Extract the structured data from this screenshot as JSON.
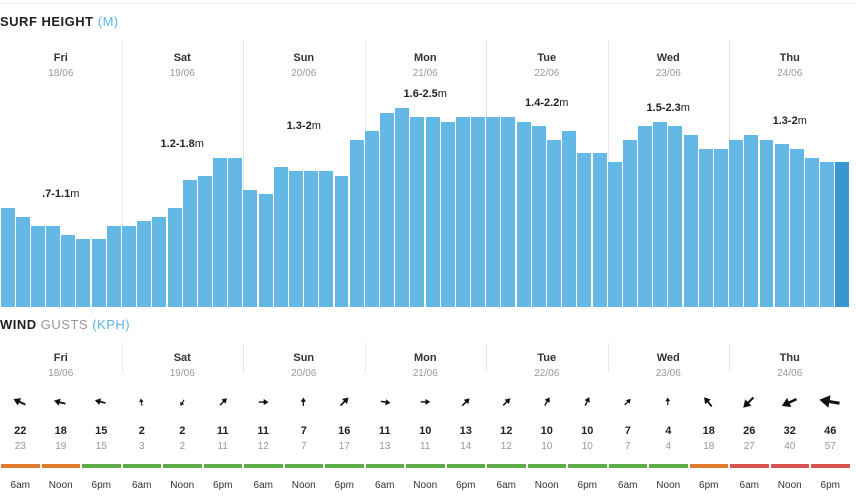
{
  "surf": {
    "title": "SURF HEIGHT",
    "unit": "(M)",
    "days": [
      {
        "name": "Fri",
        "date": "18/06",
        "range": ".7-1.1",
        "unit": "m"
      },
      {
        "name": "Sat",
        "date": "19/06",
        "range": "1.2-1.8",
        "unit": "m"
      },
      {
        "name": "Sun",
        "date": "20/06",
        "range": "1.3-2",
        "unit": "m"
      },
      {
        "name": "Mon",
        "date": "21/06",
        "range": "1.6-2.5",
        "unit": "m"
      },
      {
        "name": "Tue",
        "date": "22/06",
        "range": "1.4-2.2",
        "unit": "m"
      },
      {
        "name": "Wed",
        "date": "23/06",
        "range": "1.5-2.3",
        "unit": "m"
      },
      {
        "name": "Thu",
        "date": "24/06",
        "range": "1.3-2",
        "unit": "m"
      }
    ],
    "heights": [
      1.1,
      1.0,
      0.9,
      0.9,
      0.8,
      0.75,
      0.75,
      0.9,
      0.9,
      0.95,
      1.0,
      1.1,
      1.4,
      1.45,
      1.65,
      1.65,
      1.3,
      1.25,
      1.55,
      1.5,
      1.5,
      1.5,
      1.45,
      1.85,
      1.95,
      2.15,
      2.2,
      2.1,
      2.1,
      2.05,
      2.1,
      2.1,
      2.1,
      2.1,
      2.05,
      2.0,
      1.85,
      1.95,
      1.7,
      1.7,
      1.6,
      1.85,
      2.0,
      2.05,
      2.0,
      1.9,
      1.75,
      1.75,
      1.85,
      1.9,
      1.85,
      1.8,
      1.75,
      1.65,
      1.6,
      1.6
    ],
    "selected_index": 55,
    "ymax": 2.6
  },
  "wind": {
    "title": "WIND",
    "subtitle": "GUSTS",
    "unit": "(KPH)",
    "days": [
      {
        "name": "Fri",
        "date": "18/06",
        "slots": [
          {
            "time": "6am",
            "speed": "22",
            "gust": "23",
            "dir": -155,
            "rating": "#e07a2d"
          },
          {
            "time": "Noon",
            "speed": "18",
            "gust": "19",
            "dir": -165,
            "rating": "#e07a2d"
          },
          {
            "time": "6pm",
            "speed": "15",
            "gust": "15",
            "dir": -165,
            "rating": "#5cad4a"
          }
        ]
      },
      {
        "name": "Sat",
        "date": "19/06",
        "slots": [
          {
            "time": "6am",
            "speed": "2",
            "gust": "3",
            "dir": -100,
            "rating": "#5cad4a"
          },
          {
            "time": "Noon",
            "speed": "2",
            "gust": "2",
            "dir": 120,
            "rating": "#5cad4a"
          },
          {
            "time": "6pm",
            "speed": "11",
            "gust": "11",
            "dir": -45,
            "rating": "#5cad4a"
          }
        ]
      },
      {
        "name": "Sun",
        "date": "20/06",
        "slots": [
          {
            "time": "6am",
            "speed": "11",
            "gust": "12",
            "dir": 0,
            "rating": "#5cad4a"
          },
          {
            "time": "Noon",
            "speed": "7",
            "gust": "7",
            "dir": -90,
            "rating": "#5cad4a"
          },
          {
            "time": "6pm",
            "speed": "16",
            "gust": "17",
            "dir": -45,
            "rating": "#5cad4a"
          }
        ]
      },
      {
        "name": "Mon",
        "date": "21/06",
        "slots": [
          {
            "time": "6am",
            "speed": "11",
            "gust": "13",
            "dir": 10,
            "rating": "#5cad4a"
          },
          {
            "time": "Noon",
            "speed": "10",
            "gust": "11",
            "dir": 0,
            "rating": "#5cad4a"
          },
          {
            "time": "6pm",
            "speed": "13",
            "gust": "14",
            "dir": -45,
            "rating": "#5cad4a"
          }
        ]
      },
      {
        "name": "Tue",
        "date": "22/06",
        "slots": [
          {
            "time": "6am",
            "speed": "12",
            "gust": "12",
            "dir": -45,
            "rating": "#5cad4a"
          },
          {
            "time": "Noon",
            "speed": "10",
            "gust": "10",
            "dir": -60,
            "rating": "#5cad4a"
          },
          {
            "time": "6pm",
            "speed": "10",
            "gust": "10",
            "dir": -65,
            "rating": "#5cad4a"
          }
        ]
      },
      {
        "name": "Wed",
        "date": "23/06",
        "slots": [
          {
            "time": "6am",
            "speed": "7",
            "gust": "7",
            "dir": -45,
            "rating": "#5cad4a"
          },
          {
            "time": "Noon",
            "speed": "4",
            "gust": "4",
            "dir": -90,
            "rating": "#5cad4a"
          },
          {
            "time": "6pm",
            "speed": "18",
            "gust": "18",
            "dir": -130,
            "rating": "#e07a2d"
          }
        ]
      },
      {
        "name": "Thu",
        "date": "24/06",
        "slots": [
          {
            "time": "6am",
            "speed": "26",
            "gust": "27",
            "dir": 135,
            "rating": "#d9534f"
          },
          {
            "time": "Noon",
            "speed": "32",
            "gust": "40",
            "dir": 155,
            "rating": "#d9534f"
          },
          {
            "time": "6pm",
            "speed": "46",
            "gust": "57",
            "dir": -170,
            "rating": "#d9534f"
          }
        ]
      }
    ]
  },
  "colors": {
    "bar": "#63b8e6",
    "bar_selected": "#3a96cf",
    "unit_accent": "#5ab4e5"
  }
}
